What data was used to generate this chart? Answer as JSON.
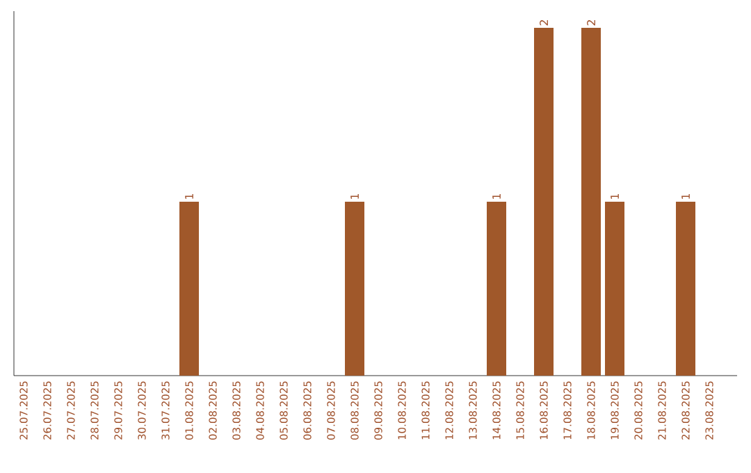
{
  "chart_data": {
    "type": "bar",
    "categories": [
      "25.07.2025",
      "26.07.2025",
      "27.07.2025",
      "28.07.2025",
      "29.07.2025",
      "30.07.2025",
      "31.07.2025",
      "01.08.2025",
      "02.08.2025",
      "03.08.2025",
      "04.08.2025",
      "05.08.2025",
      "06.08.2025",
      "07.08.2025",
      "08.08.2025",
      "09.08.2025",
      "10.08.2025",
      "11.08.2025",
      "12.08.2025",
      "13.08.2025",
      "14.08.2025",
      "15.08.2025",
      "16.08.2025",
      "17.08.2025",
      "18.08.2025",
      "19.08.2025",
      "20.08.2025",
      "21.08.2025",
      "22.08.2025",
      "23.08.2025"
    ],
    "values": [
      0,
      0,
      0,
      0,
      0,
      0,
      0,
      1,
      0,
      0,
      0,
      0,
      0,
      0,
      1,
      0,
      0,
      0,
      0,
      0,
      1,
      0,
      2,
      0,
      2,
      1,
      0,
      0,
      1,
      0
    ],
    "value_labels": [
      null,
      null,
      null,
      null,
      null,
      null,
      null,
      "1",
      null,
      null,
      null,
      null,
      null,
      null,
      "1",
      null,
      null,
      null,
      null,
      null,
      "1",
      null,
      "2",
      null,
      "2",
      "1",
      null,
      null,
      "1",
      null
    ],
    "color": "#a0582a"
  }
}
